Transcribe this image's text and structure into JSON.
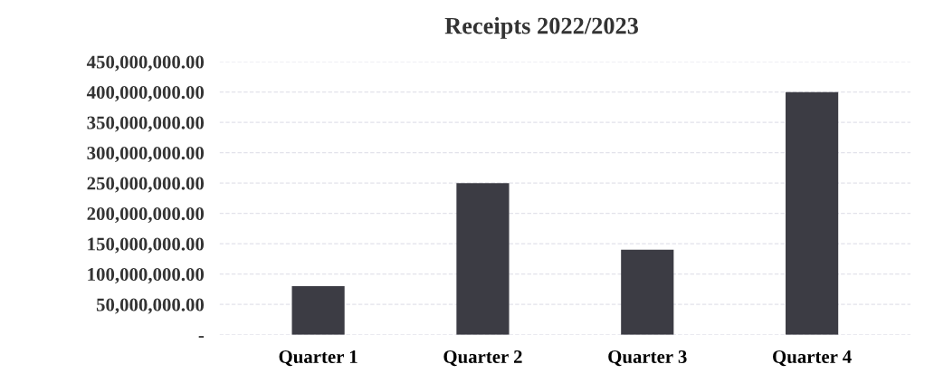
{
  "chart_data": {
    "type": "bar",
    "title": "Receipts 2022/2023",
    "categories": [
      "Quarter 1",
      "Quarter 2",
      "Quarter 3",
      "Quarter 4"
    ],
    "values": [
      80000000,
      250000000,
      140000000,
      400000000
    ],
    "color": "#3c3c44",
    "ylim": [
      0,
      450000000
    ],
    "yticks": [
      {
        "value": 0,
        "label": "-"
      },
      {
        "value": 50000000,
        "label": "50,000,000.00"
      },
      {
        "value": 100000000,
        "label": "100,000,000.00"
      },
      {
        "value": 150000000,
        "label": "150,000,000.00"
      },
      {
        "value": 200000000,
        "label": "200,000,000.00"
      },
      {
        "value": 250000000,
        "label": "250,000,000.00"
      },
      {
        "value": 300000000,
        "label": "300,000,000.00"
      },
      {
        "value": 350000000,
        "label": "350,000,000.00"
      },
      {
        "value": 400000000,
        "label": "400,000,000.00"
      },
      {
        "value": 450000000,
        "label": "450,000,000.00"
      }
    ],
    "grid": "y"
  }
}
